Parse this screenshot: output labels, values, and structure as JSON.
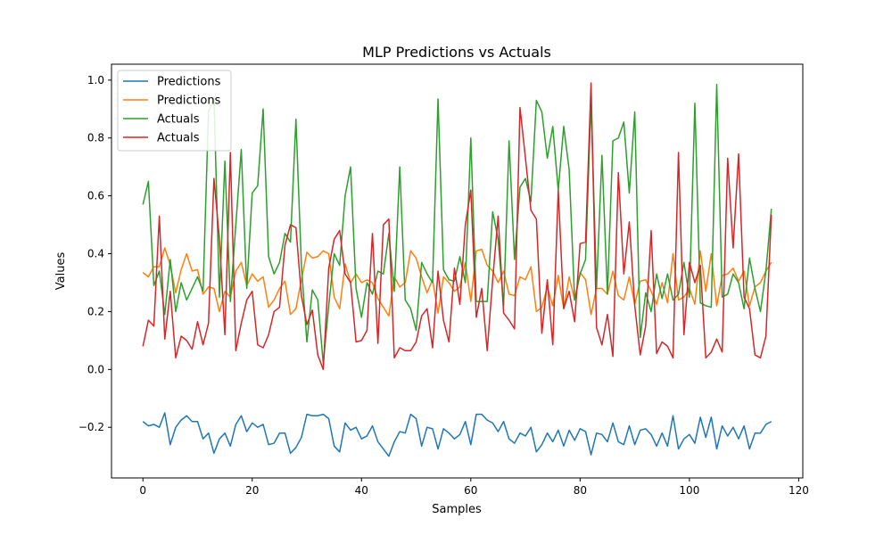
{
  "chart_data": {
    "type": "line",
    "title": "MLP Predictions vs Actuals",
    "xlabel": "Samples",
    "ylabel": "Values",
    "xlim": [
      -5.75,
      120.75
    ],
    "ylim": [
      -0.375,
      1.055
    ],
    "xticks": [
      0,
      20,
      40,
      60,
      80,
      100,
      120
    ],
    "yticks": [
      -0.2,
      0.0,
      0.2,
      0.4,
      0.6,
      0.8,
      1.0
    ],
    "ytick_labels": [
      "−0.2",
      "0.0",
      "0.2",
      "0.4",
      "0.6",
      "0.8",
      "1.0"
    ],
    "grid": false,
    "legend_position": "upper-left",
    "series": [
      {
        "name": "Predictions",
        "color": "#1f77b4",
        "values": [
          -0.18,
          -0.195,
          -0.19,
          -0.2,
          -0.15,
          -0.26,
          -0.2,
          -0.175,
          -0.16,
          -0.18,
          -0.18,
          -0.24,
          -0.22,
          -0.29,
          -0.24,
          -0.22,
          -0.265,
          -0.19,
          -0.16,
          -0.215,
          -0.185,
          -0.2,
          -0.19,
          -0.26,
          -0.255,
          -0.22,
          -0.22,
          -0.29,
          -0.27,
          -0.235,
          -0.155,
          -0.16,
          -0.16,
          -0.155,
          -0.17,
          -0.265,
          -0.285,
          -0.185,
          -0.21,
          -0.2,
          -0.24,
          -0.23,
          -0.195,
          -0.25,
          -0.275,
          -0.3,
          -0.25,
          -0.215,
          -0.22,
          -0.155,
          -0.17,
          -0.265,
          -0.2,
          -0.205,
          -0.275,
          -0.205,
          -0.22,
          -0.24,
          -0.225,
          -0.18,
          -0.26,
          -0.155,
          -0.155,
          -0.175,
          -0.185,
          -0.215,
          -0.18,
          -0.24,
          -0.255,
          -0.22,
          -0.23,
          -0.2,
          -0.285,
          -0.26,
          -0.22,
          -0.25,
          -0.21,
          -0.265,
          -0.21,
          -0.245,
          -0.205,
          -0.215,
          -0.295,
          -0.22,
          -0.225,
          -0.25,
          -0.185,
          -0.25,
          -0.26,
          -0.195,
          -0.26,
          -0.21,
          -0.205,
          -0.225,
          -0.265,
          -0.22,
          -0.265,
          -0.16,
          -0.275,
          -0.24,
          -0.225,
          -0.255,
          -0.165,
          -0.235,
          -0.165,
          -0.275,
          -0.195,
          -0.23,
          -0.2,
          -0.24,
          -0.195,
          -0.275,
          -0.22,
          -0.22,
          -0.19,
          -0.18
        ]
      },
      {
        "name": "Predictions",
        "color": "#ff7f0e",
        "values": [
          0.335,
          0.32,
          0.355,
          0.355,
          0.42,
          0.36,
          0.265,
          0.345,
          0.4,
          0.34,
          0.345,
          0.26,
          0.285,
          0.28,
          0.2,
          0.27,
          0.25,
          0.34,
          0.37,
          0.29,
          0.33,
          0.305,
          0.32,
          0.215,
          0.24,
          0.28,
          0.305,
          0.19,
          0.21,
          0.31,
          0.405,
          0.385,
          0.39,
          0.41,
          0.4,
          0.25,
          0.21,
          0.365,
          0.3,
          0.33,
          0.3,
          0.31,
          0.3,
          0.245,
          0.215,
          0.185,
          0.32,
          0.285,
          0.3,
          0.41,
          0.385,
          0.32,
          0.265,
          0.31,
          0.195,
          0.32,
          0.3,
          0.27,
          0.285,
          0.37,
          0.235,
          0.41,
          0.415,
          0.36,
          0.34,
          0.3,
          0.34,
          0.26,
          0.255,
          0.32,
          0.31,
          0.355,
          0.2,
          0.215,
          0.285,
          0.22,
          0.325,
          0.21,
          0.32,
          0.24,
          0.335,
          0.31,
          0.19,
          0.28,
          0.28,
          0.26,
          0.34,
          0.255,
          0.24,
          0.32,
          0.225,
          0.305,
          0.31,
          0.27,
          0.225,
          0.3,
          0.23,
          0.4,
          0.24,
          0.25,
          0.28,
          0.225,
          0.41,
          0.27,
          0.4,
          0.22,
          0.325,
          0.33,
          0.35,
          0.305,
          0.34,
          0.22,
          0.285,
          0.3,
          0.34,
          0.37
        ]
      },
      {
        "name": "Actuals",
        "color": "#2ca02c",
        "values": [
          0.57,
          0.65,
          0.29,
          0.34,
          0.19,
          0.38,
          0.2,
          0.3,
          0.24,
          0.28,
          0.32,
          0.27,
          0.89,
          0.94,
          0.25,
          0.72,
          0.235,
          0.5,
          0.76,
          0.28,
          0.61,
          0.635,
          0.9,
          0.39,
          0.33,
          0.37,
          0.47,
          0.44,
          0.865,
          0.36,
          0.095,
          0.275,
          0.24,
          0.02,
          0.22,
          0.4,
          0.36,
          0.6,
          0.7,
          0.28,
          0.18,
          0.3,
          0.26,
          0.34,
          0.33,
          0.47,
          0.27,
          0.7,
          0.24,
          0.21,
          0.135,
          0.37,
          0.33,
          0.3,
          0.935,
          0.345,
          0.31,
          0.305,
          0.39,
          0.3,
          0.8,
          0.235,
          0.235,
          0.235,
          0.545,
          0.45,
          0.22,
          0.79,
          0.38,
          0.63,
          0.66,
          0.58,
          0.93,
          0.89,
          0.73,
          0.84,
          0.62,
          0.84,
          0.69,
          0.24,
          0.33,
          0.38,
          0.93,
          0.28,
          0.74,
          0.26,
          0.79,
          0.8,
          0.855,
          0.61,
          0.89,
          0.11,
          0.265,
          0.2,
          0.33,
          0.245,
          0.33,
          0.24,
          0.26,
          0.37,
          0.25,
          0.92,
          0.23,
          0.22,
          0.215,
          0.985,
          0.25,
          0.26,
          0.33,
          0.3,
          0.21,
          0.385,
          0.28,
          0.2,
          0.34,
          0.555
        ]
      },
      {
        "name": "Actuals",
        "color": "#d62728",
        "values": [
          0.08,
          0.17,
          0.15,
          0.53,
          0.105,
          0.27,
          0.04,
          0.115,
          0.1,
          0.07,
          0.165,
          0.085,
          0.16,
          0.66,
          0.45,
          0.12,
          0.75,
          0.065,
          0.16,
          0.24,
          0.27,
          0.085,
          0.075,
          0.12,
          0.2,
          0.215,
          0.43,
          0.5,
          0.49,
          0.255,
          0.155,
          0.205,
          0.05,
          0.0,
          0.35,
          0.45,
          0.48,
          0.33,
          0.3,
          0.095,
          0.1,
          0.135,
          0.47,
          0.09,
          0.5,
          0.52,
          0.04,
          0.075,
          0.065,
          0.065,
          0.095,
          0.185,
          0.21,
          0.075,
          0.34,
          0.17,
          0.095,
          0.35,
          0.225,
          0.5,
          0.62,
          0.18,
          0.28,
          0.065,
          0.31,
          0.53,
          0.195,
          0.17,
          0.14,
          0.905,
          0.73,
          0.55,
          0.52,
          0.125,
          0.31,
          0.085,
          0.62,
          0.21,
          0.27,
          0.165,
          0.435,
          0.44,
          0.99,
          0.145,
          0.085,
          0.19,
          0.045,
          0.68,
          0.33,
          0.51,
          0.22,
          0.05,
          0.15,
          0.48,
          0.055,
          0.095,
          0.08,
          0.04,
          0.75,
          0.12,
          0.37,
          0.3,
          0.36,
          0.04,
          0.06,
          0.105,
          0.06,
          0.73,
          0.42,
          0.745,
          0.25,
          0.21,
          0.05,
          0.04,
          0.115,
          0.535
        ]
      }
    ]
  }
}
